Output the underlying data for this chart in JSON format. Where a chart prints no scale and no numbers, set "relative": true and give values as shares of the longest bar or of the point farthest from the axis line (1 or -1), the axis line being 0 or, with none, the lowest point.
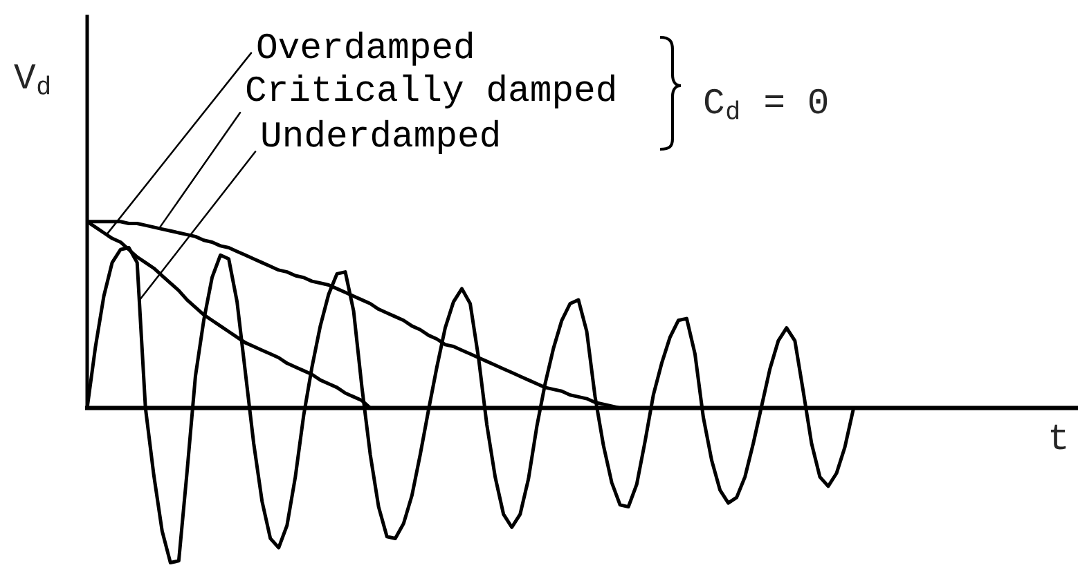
{
  "chart_data": {
    "type": "line",
    "relative": true,
    "xlabel": "t",
    "ylabel": "V$_{d}$",
    "annotations": [
      "C$_{d}$ = 0"
    ],
    "categories": [
      null,
      null,
      null,
      null,
      null,
      null,
      null,
      null,
      null,
      null,
      null,
      null,
      null,
      null,
      null,
      null,
      null,
      null,
      null,
      null,
      null,
      null,
      null,
      null,
      null,
      null,
      null,
      null,
      null,
      null,
      null,
      null,
      null,
      null,
      null,
      null,
      null,
      null,
      null,
      null,
      null,
      null,
      null,
      null,
      null,
      null,
      null,
      null,
      null,
      null,
      null,
      null,
      null,
      null,
      null,
      null,
      null,
      null,
      null,
      null,
      null,
      null,
      null,
      null,
      null,
      null,
      null,
      null,
      null,
      null,
      null,
      null,
      null,
      null,
      null,
      null,
      null,
      null,
      null,
      null,
      null,
      null,
      null,
      null,
      null,
      null,
      null,
      null,
      null,
      null,
      null,
      null,
      null,
      null,
      null,
      null,
      null,
      null,
      null,
      null,
      null,
      null,
      null,
      null,
      null,
      null,
      null,
      null,
      null,
      null,
      null,
      null,
      null,
      null,
      null,
      null,
      null,
      null,
      null,
      null
    ],
    "series": [
      {
        "name": "Overdamped",
        "color": "#000000",
        "values": [
          1.0,
          0.97,
          0.94,
          0.91,
          0.89,
          0.85,
          0.81,
          0.78,
          0.75,
          0.71,
          0.67,
          0.63,
          0.58,
          0.54,
          0.5,
          0.47,
          0.44,
          0.41,
          0.38,
          0.35,
          0.33,
          0.31,
          0.29,
          0.27,
          0.24,
          0.22,
          0.2,
          0.18,
          0.15,
          0.13,
          0.11,
          0.08,
          0.06,
          0.04,
          0,
          null,
          null,
          null,
          null,
          null,
          null,
          null,
          null,
          null,
          null,
          null,
          null,
          null,
          null,
          null,
          null,
          null,
          null,
          null,
          null,
          null,
          null,
          null,
          null,
          null,
          null,
          null,
          null,
          null,
          null,
          null,
          null,
          null,
          null,
          null,
          null,
          null,
          null,
          null,
          null,
          null,
          null,
          null,
          null,
          null,
          null,
          null,
          null,
          null,
          null,
          null,
          null,
          null,
          null,
          null,
          null,
          null,
          null,
          null,
          null,
          null,
          null,
          null,
          null,
          null,
          null,
          null,
          null,
          null,
          null,
          null,
          null,
          null,
          null,
          null,
          null,
          null,
          null,
          null,
          null,
          null,
          null,
          null,
          null,
          null
        ]
      },
      {
        "name": "Critically damped",
        "color": "#000000",
        "values": [
          1.0,
          1.0,
          1.0,
          1.0,
          1.0,
          0.99,
          0.99,
          0.98,
          0.97,
          0.96,
          0.95,
          0.94,
          0.93,
          0.92,
          0.9,
          0.89,
          0.87,
          0.86,
          0.84,
          0.82,
          0.8,
          0.78,
          0.76,
          0.74,
          0.73,
          0.71,
          0.7,
          0.68,
          0.67,
          0.66,
          0.64,
          0.62,
          0.6,
          0.58,
          0.56,
          0.53,
          0.51,
          0.49,
          0.47,
          0.44,
          0.42,
          0.39,
          0.37,
          0.34,
          0.33,
          0.31,
          0.29,
          0.27,
          0.25,
          0.23,
          0.21,
          0.19,
          0.17,
          0.15,
          0.13,
          0.11,
          0.1,
          0.09,
          0.07,
          0.06,
          0.05,
          0.03,
          0.02,
          0.01,
          0,
          null,
          null,
          null,
          null,
          null,
          null,
          null,
          null,
          null,
          null,
          null,
          null,
          null,
          null,
          null,
          null,
          null,
          null,
          null,
          null,
          null,
          null,
          null,
          null,
          null,
          null,
          null,
          null,
          null,
          null,
          null,
          null,
          null,
          null,
          null,
          null,
          null,
          null,
          null,
          null,
          null,
          null,
          null,
          null,
          null,
          null,
          null,
          null,
          null,
          null,
          null,
          null,
          null,
          null,
          null
        ]
      },
      {
        "name": "Underdamped",
        "color": "#000000",
        "values": [
          0,
          0.33,
          0.6,
          0.78,
          0.85,
          0.86,
          0.78,
          0,
          -0.36,
          -0.66,
          -0.83,
          -0.82,
          -0.34,
          0.17,
          0.47,
          0.7,
          0.82,
          0.8,
          0.57,
          0.19,
          -0.19,
          -0.5,
          -0.7,
          -0.75,
          -0.63,
          -0.37,
          -0.04,
          0.22,
          0.44,
          0.61,
          0.72,
          0.73,
          0.52,
          0.11,
          -0.25,
          -0.53,
          -0.69,
          -0.7,
          -0.62,
          -0.47,
          -0.25,
          -0.01,
          0.22,
          0.43,
          0.57,
          0.64,
          0.56,
          0.27,
          -0.09,
          -0.37,
          -0.57,
          -0.64,
          -0.57,
          -0.38,
          -0.1,
          0.13,
          0.32,
          0.47,
          0.56,
          0.58,
          0.41,
          0.06,
          -0.2,
          -0.4,
          -0.52,
          -0.53,
          -0.41,
          -0.18,
          0.07,
          0.24,
          0.38,
          0.47,
          0.48,
          0.29,
          -0.05,
          -0.28,
          -0.44,
          -0.51,
          -0.48,
          -0.37,
          -0.19,
          0.01,
          0.21,
          0.36,
          0.43,
          0.36,
          0.09,
          -0.19,
          -0.37,
          -0.42,
          -0.35,
          -0.21,
          -0.01,
          null,
          null,
          null,
          null,
          null,
          null,
          null,
          null,
          null,
          null,
          null,
          null,
          null,
          null,
          null,
          null,
          null,
          null,
          null,
          null,
          null,
          null,
          null,
          null,
          null,
          null,
          null
        ]
      }
    ]
  }
}
